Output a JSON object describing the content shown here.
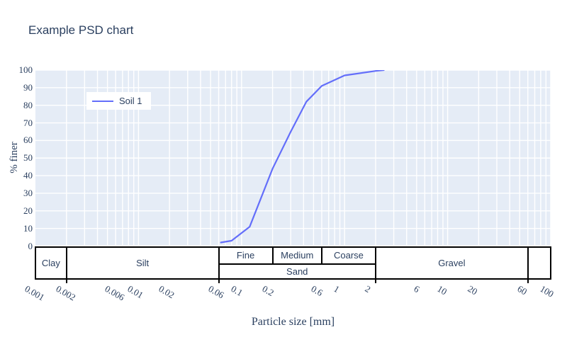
{
  "chart_data": {
    "type": "line",
    "title": "Example PSD chart",
    "xlabel": "Particle size [mm]",
    "ylabel": "% finer",
    "x_scale": "log",
    "xlim": [
      0.001,
      100
    ],
    "ylim": [
      0,
      100
    ],
    "grid": true,
    "legend_position": "top-left-inside",
    "series": [
      {
        "name": "Soil 1",
        "color": "#636EFA",
        "x": [
          0.063,
          0.08,
          0.12,
          0.2,
          0.3,
          0.425,
          0.6,
          1.0,
          2.0,
          2.4
        ],
        "y": [
          2,
          3,
          11,
          44,
          65,
          82,
          91,
          97,
          99.5,
          100
        ]
      }
    ]
  },
  "axes": {
    "x_ticks": [
      0.001,
      0.002,
      0.006,
      0.01,
      0.02,
      0.06,
      0.1,
      0.2,
      0.6,
      1,
      2,
      6,
      10,
      20,
      60,
      100
    ],
    "x_tick_labels": [
      "0.001",
      "0.002",
      "0.006",
      "0.01",
      "0.02",
      "0.06",
      "0.1",
      "0.2",
      "0.6",
      "1",
      "2",
      "6",
      "10",
      "20",
      "60",
      "100"
    ],
    "y_ticks": [
      0,
      10,
      20,
      30,
      40,
      50,
      60,
      70,
      80,
      90,
      100
    ],
    "y_tick_labels": [
      "0",
      "10",
      "20",
      "30",
      "40",
      "50",
      "60",
      "70",
      "80",
      "90",
      "100"
    ]
  },
  "classification": {
    "boundary_ticks": [
      0.002,
      0.06,
      2,
      60
    ],
    "cells": [
      {
        "label": "Clay",
        "from": 0.001,
        "to": 0.002,
        "row": "full"
      },
      {
        "label": "Silt",
        "from": 0.002,
        "to": 0.06,
        "row": "full"
      },
      {
        "label": "Fine",
        "from": 0.06,
        "to": 0.2,
        "row": "top"
      },
      {
        "label": "Medium",
        "from": 0.2,
        "to": 0.6,
        "row": "top"
      },
      {
        "label": "Coarse",
        "from": 0.6,
        "to": 2,
        "row": "top"
      },
      {
        "label": "Sand",
        "from": 0.06,
        "to": 2,
        "row": "bottom"
      },
      {
        "label": "Gravel",
        "from": 2,
        "to": 60,
        "row": "full"
      },
      {
        "label": "",
        "from": 60,
        "to": 100,
        "row": "full"
      }
    ]
  },
  "colors": {
    "plot_bg": "#E5ECF6",
    "grid": "#FFFFFF",
    "line": "#636EFA",
    "text": "#2a3f5f",
    "band_border": "#000000",
    "band_bg": "#FFFFFF"
  }
}
